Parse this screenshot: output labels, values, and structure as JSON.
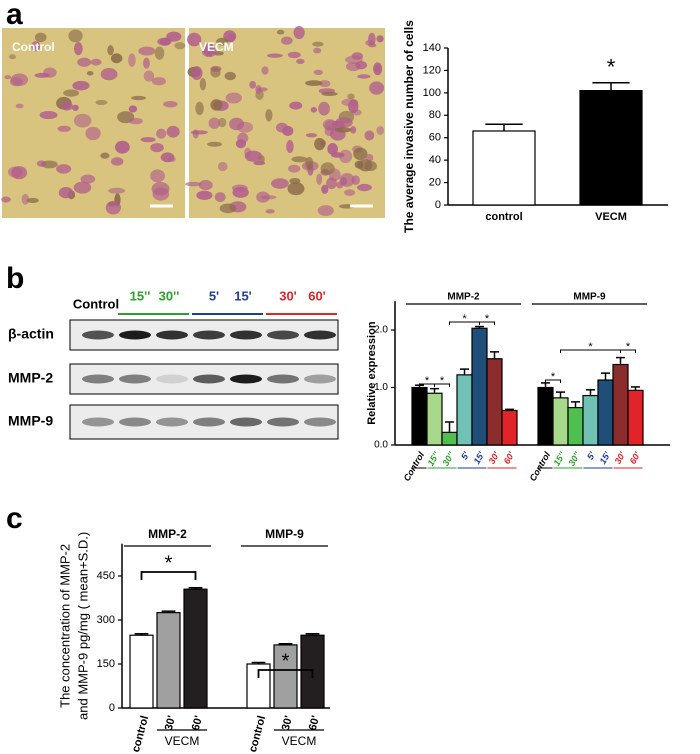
{
  "panel_labels": [
    "a",
    "b",
    "c"
  ],
  "micrographs": [
    "Control",
    "VECM"
  ],
  "blot": {
    "lanes": [
      "Control",
      "15''",
      "30''",
      "5'",
      "15'",
      "30'",
      "60'"
    ],
    "lane_colors": [
      "#000000",
      "#2ca02c",
      "#2ca02c",
      "#1f3c99",
      "#1f3c99",
      "#e0242a",
      "#e0242a"
    ],
    "rows": [
      "β-actin",
      "MMP-2",
      "MMP-9"
    ]
  },
  "chart_data": [
    {
      "type": "bar",
      "ylabel": "The average invasive number of cells",
      "categories": [
        "control",
        "VECM"
      ],
      "values": [
        66,
        102
      ],
      "errors": [
        6,
        7
      ],
      "colors": [
        "#ffffff",
        "#000000"
      ],
      "ylim": [
        0,
        140
      ],
      "yticks": [
        0,
        20,
        40,
        60,
        80,
        100,
        120,
        140
      ],
      "annotation": "*"
    },
    {
      "type": "grouped_bar",
      "ylabel": "Relative expression",
      "categories": [
        "Control",
        "15''",
        "30''",
        "5'",
        "15'",
        "30'",
        "60'"
      ],
      "colors": [
        "#000000",
        "#a8d88a",
        "#4fbf4f",
        "#6fc2b4",
        "#1f4e79",
        "#8b2d2d",
        "#e0242a"
      ],
      "label_colors": [
        "#000000",
        "#2ca02c",
        "#2ca02c",
        "#1f3c99",
        "#1f3c99",
        "#e0242a",
        "#e0242a"
      ],
      "groups": [
        {
          "name": "MMP-2",
          "values": [
            1.0,
            0.9,
            0.22,
            1.22,
            2.03,
            1.5,
            0.6
          ],
          "errors": [
            0.04,
            0.08,
            0.18,
            0.1,
            0.03,
            0.12,
            0.02
          ],
          "significance": [
            "*",
            "*",
            "*",
            "*"
          ]
        },
        {
          "name": "MMP-9",
          "values": [
            1.0,
            0.82,
            0.65,
            0.86,
            1.13,
            1.4,
            0.95
          ],
          "errors": [
            0.08,
            0.1,
            0.1,
            0.1,
            0.12,
            0.12,
            0.06
          ],
          "significance": [
            "*",
            "*",
            "*"
          ]
        }
      ],
      "ylim": [
        0,
        2.5
      ],
      "yticks": [
        {
          "value": 0,
          "label": "0.0"
        },
        {
          "value": 1,
          "label": "1.0"
        },
        {
          "value": 2,
          "label": "2.0"
        }
      ]
    },
    {
      "type": "grouped_bar",
      "ylabel": [
        "The concentration of MMP-2",
        "and MMP-9  pg/mg ( mean+S.D.)"
      ],
      "categories": [
        "control",
        "30'",
        "60'"
      ],
      "category_group": "VECM",
      "colors": [
        "#ffffff",
        "#a0a0a0",
        "#231f20"
      ],
      "groups": [
        {
          "name": "MMP-2",
          "values": [
            248,
            325,
            405
          ],
          "errors": [
            5,
            5,
            5
          ],
          "significance": [
            "*"
          ]
        },
        {
          "name": "MMP-9",
          "values": [
            150,
            215,
            248
          ],
          "errors": [
            5,
            4,
            5
          ],
          "significance": [
            "*"
          ]
        }
      ],
      "ylim": [
        0,
        560
      ],
      "yticks": [
        0,
        150,
        300,
        450
      ]
    }
  ]
}
